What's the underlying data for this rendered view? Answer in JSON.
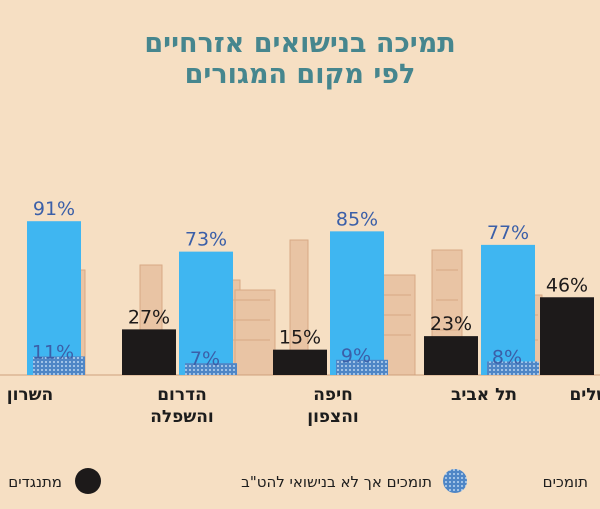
{
  "title": [
    "תמיכה בנישואים אזרחיים",
    "לפי מקום המגורים"
  ],
  "chart_data": {
    "type": "bar",
    "title": "תמיכה בנישואים אזרחיים לפי מקום המגורים",
    "unit": "%",
    "categories": [
      {
        "lines": [
          "השרון"
        ]
      },
      {
        "lines": [
          "הדרום",
          "והשפלה"
        ]
      },
      {
        "lines": [
          "חיפה",
          "והצפון"
        ]
      },
      {
        "lines": [
          "תל אביב"
        ]
      },
      {
        "lines": [
          "ירושלים"
        ]
      }
    ],
    "series": [
      {
        "name": "תומכים",
        "color": "#3fb6f1",
        "values": [
          91,
          73,
          85,
          77,
          null
        ]
      },
      {
        "name": "תומכים אך לא בנישואי להט\"ב",
        "color": "#4f86c6",
        "pattern": "dots",
        "values": [
          11,
          7,
          9,
          8,
          null
        ]
      },
      {
        "name": "מתנגדים",
        "color": "#1d1a1a",
        "values": [
          null,
          27,
          15,
          23,
          46
        ]
      }
    ],
    "ylim": [
      0,
      100
    ]
  },
  "legend": [
    {
      "label": "תומכים",
      "color": "#3fb6f1"
    },
    {
      "label": "תומכים אך לא בנישואי להט\"ב",
      "color": "#4f86c6"
    },
    {
      "label": "מתנגדים",
      "color": "#1d1a1a"
    }
  ]
}
